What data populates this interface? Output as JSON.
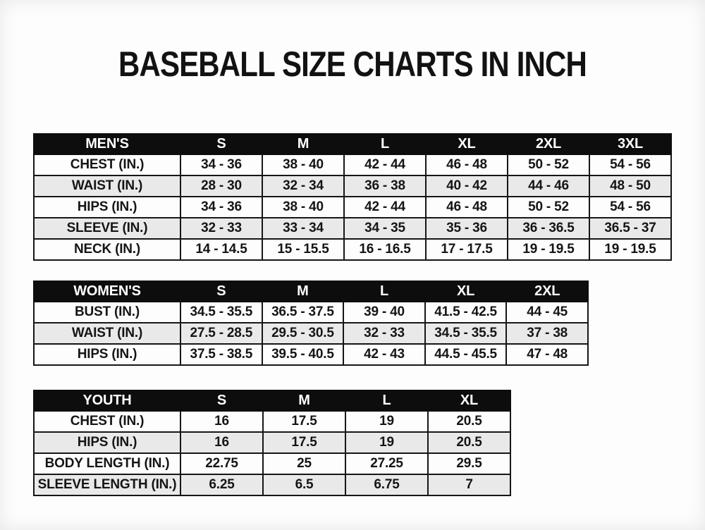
{
  "page": {
    "title": "BASEBALL SIZE CHARTS IN INCH"
  },
  "colors": {
    "header_bg": "#0d0d0d",
    "header_text": "#ffffff",
    "row_odd_bg": "#fdfdfd",
    "row_even_bg": "#e9e9e9",
    "border": "#161616",
    "text": "#151515"
  },
  "chart_data": [
    {
      "type": "table",
      "name": "mens-size-chart",
      "header": [
        "MEN'S",
        "S",
        "M",
        "L",
        "XL",
        "2XL",
        "3XL"
      ],
      "rows": [
        {
          "label": "CHEST (IN.)",
          "values": [
            "34 - 36",
            "38 - 40",
            "42 - 44",
            "46 - 48",
            "50 - 52",
            "54 - 56"
          ]
        },
        {
          "label": "WAIST (IN.)",
          "values": [
            "28 - 30",
            "32 - 34",
            "36 - 38",
            "40 - 42",
            "44 - 46",
            "48 - 50"
          ]
        },
        {
          "label": "HIPS (IN.)",
          "values": [
            "34 - 36",
            "38 - 40",
            "42 - 44",
            "46 - 48",
            "50 - 52",
            "54 - 56"
          ]
        },
        {
          "label": "SLEEVE (IN.)",
          "values": [
            "32 - 33",
            "33 - 34",
            "34 - 35",
            "35 - 36",
            "36 - 36.5",
            "36.5 - 37"
          ]
        },
        {
          "label": "NECK (IN.)",
          "values": [
            "14 - 14.5",
            "15 - 15.5",
            "16 - 16.5",
            "17 - 17.5",
            "19 - 19.5",
            "19 - 19.5"
          ]
        }
      ]
    },
    {
      "type": "table",
      "name": "womens-size-chart",
      "header": [
        "WOMEN'S",
        "S",
        "M",
        "L",
        "XL",
        "2XL"
      ],
      "rows": [
        {
          "label": "BUST (IN.)",
          "values": [
            "34.5 - 35.5",
            "36.5 - 37.5",
            "39 - 40",
            "41.5 - 42.5",
            "44 - 45"
          ]
        },
        {
          "label": "WAIST (IN.)",
          "values": [
            "27.5 - 28.5",
            "29.5 - 30.5",
            "32 - 33",
            "34.5 - 35.5",
            "37 - 38"
          ]
        },
        {
          "label": "HIPS (IN.)",
          "values": [
            "37.5 - 38.5",
            "39.5 - 40.5",
            "42 - 43",
            "44.5 - 45.5",
            "47 - 48"
          ]
        }
      ]
    },
    {
      "type": "table",
      "name": "youth-size-chart",
      "header": [
        "YOUTH",
        "S",
        "M",
        "L",
        "XL"
      ],
      "rows": [
        {
          "label": "CHEST (IN.)",
          "values": [
            "16",
            "17.5",
            "19",
            "20.5"
          ]
        },
        {
          "label": "HIPS (IN.)",
          "values": [
            "16",
            "17.5",
            "19",
            "20.5"
          ]
        },
        {
          "label": "BODY LENGTH (IN.)",
          "values": [
            "22.75",
            "25",
            "27.25",
            "29.5"
          ]
        },
        {
          "label": "SLEEVE LENGTH (IN.)",
          "values": [
            "6.25",
            "6.5",
            "6.75",
            "7"
          ]
        }
      ]
    }
  ]
}
